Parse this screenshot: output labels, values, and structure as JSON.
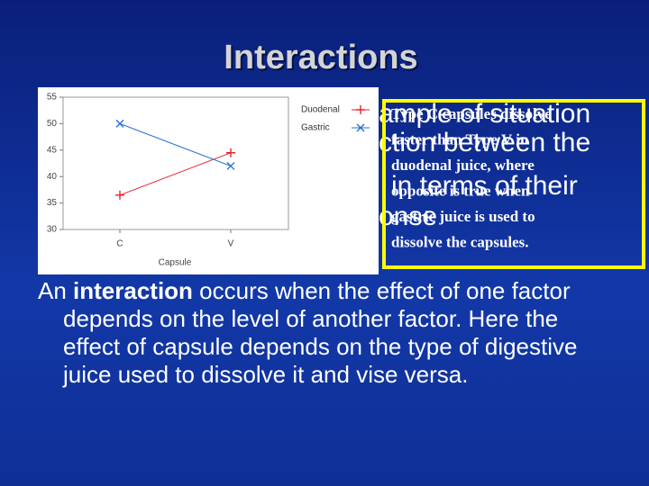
{
  "title": "Interactions",
  "background_text": [
    "ample of situation",
    "ction between the",
    "in terms of their",
    "onse"
  ],
  "chart_data": {
    "type": "line",
    "x_label": "Capsule",
    "categories": [
      "C",
      "V"
    ],
    "series": [
      {
        "name": "Duodenal",
        "color": "#e8202a",
        "marker": "+",
        "values": [
          36.5,
          44.5
        ]
      },
      {
        "name": "Gastric",
        "color": "#2a6fd6",
        "marker": "x",
        "values": [
          50,
          42
        ]
      }
    ],
    "ylim": [
      30,
      55
    ],
    "yticks": [
      30,
      35,
      40,
      45,
      50,
      55
    ]
  },
  "callout": [
    "Type C capsules dissolve",
    "faster than Type V in",
    "duodenal juice, where",
    "opposite is true when",
    "gastric juice is used to",
    "dissolve the capsules."
  ],
  "body": {
    "lead": "An ",
    "term": "interaction",
    "rest": " occurs when the effect of one factor depends on the level of another factor.  Here the effect of capsule depends on the type of digestive juice used to dissolve it and vise versa."
  }
}
